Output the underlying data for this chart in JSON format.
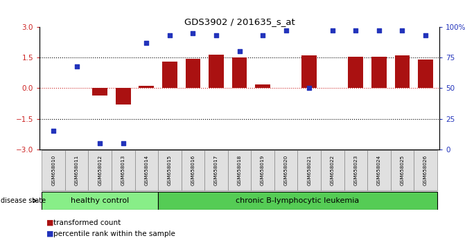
{
  "title": "GDS3902 / 201635_s_at",
  "samples": [
    "GSM658010",
    "GSM658011",
    "GSM658012",
    "GSM658013",
    "GSM658014",
    "GSM658015",
    "GSM658016",
    "GSM658017",
    "GSM658018",
    "GSM658019",
    "GSM658020",
    "GSM658021",
    "GSM658022",
    "GSM658023",
    "GSM658024",
    "GSM658025",
    "GSM658026"
  ],
  "bar_values": [
    0.0,
    0.0,
    -0.35,
    -0.8,
    0.1,
    1.3,
    1.45,
    1.65,
    1.5,
    0.2,
    0.0,
    1.6,
    0.02,
    1.55,
    1.55,
    1.6,
    1.4
  ],
  "percentile_values": [
    15,
    68,
    5,
    5,
    87,
    93,
    95,
    93,
    80,
    93,
    97,
    50,
    97,
    97,
    97,
    97,
    93
  ],
  "bar_color": "#aa1111",
  "dot_color": "#2233bb",
  "ylim_left": [
    -3,
    3
  ],
  "ylim_right": [
    0,
    100
  ],
  "yticks_left": [
    -3,
    -1.5,
    0,
    1.5,
    3
  ],
  "yticks_right": [
    0,
    25,
    50,
    75,
    100
  ],
  "hlines_dotted": [
    1.5,
    -1.5
  ],
  "healthy_control_count": 5,
  "healthy_label": "healthy control",
  "disease_label": "chronic B-lymphocytic leukemia",
  "disease_state_label": "disease state",
  "legend_bar_label": "transformed count",
  "legend_dot_label": "percentile rank within the sample",
  "bg_color": "#ffffff",
  "sample_box_bg": "#e0e0e0",
  "healthy_bg": "#88ee88",
  "disease_bg": "#55cc55"
}
